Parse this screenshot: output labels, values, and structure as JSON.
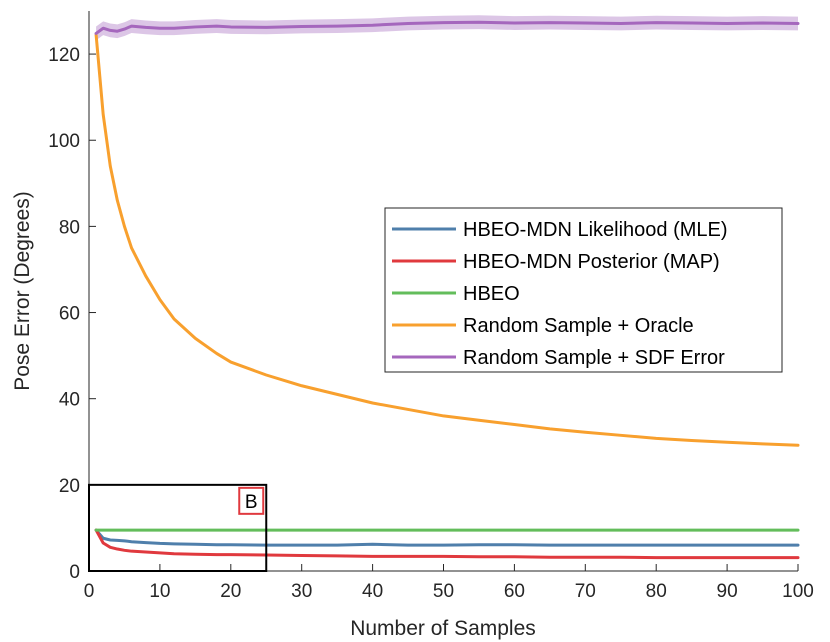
{
  "chart_data": {
    "type": "line",
    "xlabel": "Number of Samples",
    "ylabel": "Pose Error (Degrees)",
    "xlim": [
      0,
      100
    ],
    "ylim": [
      0,
      130
    ],
    "xticks": [
      0,
      10,
      20,
      30,
      40,
      50,
      60,
      70,
      80,
      90,
      100
    ],
    "yticks": [
      0,
      20,
      40,
      60,
      80,
      100,
      120
    ],
    "grid": false,
    "legend_position": "center-right",
    "x": [
      1,
      2,
      3,
      4,
      5,
      6,
      8,
      10,
      12,
      15,
      18,
      20,
      25,
      30,
      35,
      40,
      45,
      50,
      55,
      60,
      65,
      70,
      75,
      80,
      85,
      90,
      95,
      100
    ],
    "series": [
      {
        "name": "HBEO-MDN Likelihood (MLE)",
        "color": "#4f7fab",
        "values": [
          9.5,
          7.6,
          7.2,
          7.1,
          7.0,
          6.8,
          6.6,
          6.4,
          6.3,
          6.2,
          6.1,
          6.1,
          6.0,
          6.0,
          6.0,
          6.2,
          6.0,
          6.0,
          6.1,
          6.1,
          6.0,
          6.0,
          6.0,
          6.0,
          6.0,
          6.0,
          6.0,
          6.0
        ]
      },
      {
        "name": "HBEO-MDN Posterior (MAP)",
        "color": "#e0393e",
        "values": [
          9.5,
          6.5,
          5.5,
          5.1,
          4.8,
          4.6,
          4.4,
          4.2,
          4.0,
          3.9,
          3.8,
          3.8,
          3.7,
          3.6,
          3.5,
          3.4,
          3.4,
          3.4,
          3.3,
          3.3,
          3.2,
          3.2,
          3.2,
          3.1,
          3.1,
          3.1,
          3.1,
          3.1
        ]
      },
      {
        "name": "HBEO",
        "color": "#63bd5b",
        "values": [
          9.5,
          9.5,
          9.5,
          9.5,
          9.5,
          9.5,
          9.5,
          9.5,
          9.5,
          9.5,
          9.5,
          9.5,
          9.5,
          9.5,
          9.5,
          9.5,
          9.5,
          9.5,
          9.5,
          9.5,
          9.5,
          9.5,
          9.5,
          9.5,
          9.5,
          9.5,
          9.5,
          9.5
        ]
      },
      {
        "name": "Random Sample + Oracle",
        "color": "#f8a02e",
        "values": [
          124.5,
          106,
          94,
          86,
          80,
          75,
          68.5,
          63,
          58.5,
          54,
          50.5,
          48.5,
          45.5,
          43,
          41,
          39,
          37.5,
          36,
          35,
          34,
          33,
          32.2,
          31.5,
          30.8,
          30.3,
          29.9,
          29.5,
          29.2
        ]
      },
      {
        "name": "Random Sample + SDF Error",
        "color": "#a567bd",
        "band_color": "#dcc6e6",
        "band_halfwidth": 1.6,
        "values": [
          124.8,
          126,
          125.5,
          125.3,
          125.8,
          126.5,
          126.2,
          126,
          126,
          126.3,
          126.5,
          126.3,
          126.2,
          126.4,
          126.5,
          126.7,
          127.1,
          127.3,
          127.4,
          127.2,
          127.3,
          127.2,
          127.1,
          127.3,
          127.2,
          127.1,
          127.2,
          127.1
        ]
      }
    ],
    "annotations": [
      {
        "type": "box",
        "label": "B",
        "x_range": [
          0,
          25
        ],
        "y_range": [
          0,
          20
        ]
      }
    ]
  }
}
